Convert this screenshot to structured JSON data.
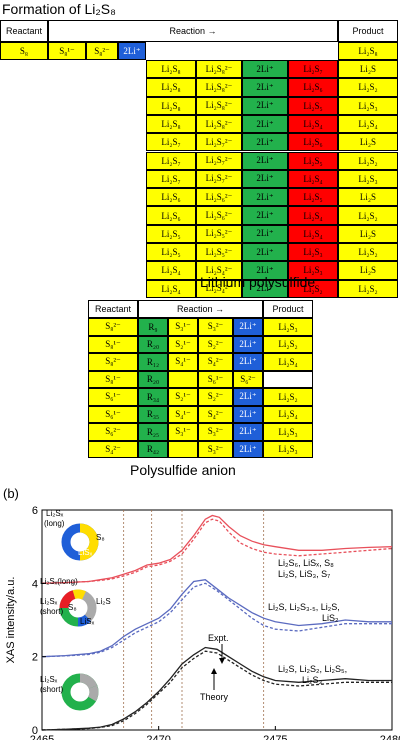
{
  "top_table": {
    "title": "Formation of Li₂S₈",
    "headers": {
      "reactant": "Reactant",
      "reaction": "Reaction →",
      "product": "Product"
    },
    "first_row": {
      "reactant": "S₈",
      "r1": "S₈¹⁻",
      "r2": "S₈²⁻",
      "r3": "2Li⁺",
      "product": "Li₂S₈"
    },
    "rows": [
      [
        "Li₂S₈",
        "Li₂S₈²⁻",
        "2Li⁺",
        "Li₂S₇",
        "Li₂S"
      ],
      [
        "Li₂S₈",
        "Li₂S₈²⁻",
        "2Li⁺",
        "Li₂S₆",
        "Li₂S₂"
      ],
      [
        "Li₂S₈",
        "Li₂S₈²⁻",
        "2Li⁺",
        "Li₂S₅",
        "Li₂S₃"
      ],
      [
        "Li₂S₈",
        "Li₂S₈²⁻",
        "2Li⁺",
        "Li₂S₄",
        "Li₂S₄"
      ],
      [
        "Li₂S₇",
        "Li₂S₇²⁻",
        "2Li⁺",
        "Li₂S₆",
        "Li₂S"
      ],
      [
        "Li₂S₇",
        "Li₂S₇²⁻",
        "2Li⁺",
        "Li₂S₅",
        "Li₂S₂"
      ],
      [
        "Li₂S₇",
        "Li₂S₇²⁻",
        "2Li⁺",
        "Li₂S₄",
        "Li₂S₃"
      ],
      [
        "Li₂S₆",
        "Li₂S₆²⁻",
        "2Li⁺",
        "Li₂S₅",
        "Li₂S"
      ],
      [
        "Li₂S₆",
        "Li₂S₆²⁻",
        "2Li⁺",
        "Li₂S₄",
        "Li₂S₂"
      ],
      [
        "Li₂S₅",
        "Li₂S₅²⁻",
        "2Li⁺",
        "Li₂S₄",
        "Li₂S"
      ],
      [
        "Li₂S₅",
        "Li₂S₅²⁻",
        "2Li⁺",
        "Li₂S₃",
        "Li₂S₂"
      ],
      [
        "Li₂S₄",
        "Li₂S₄²⁻",
        "2Li⁺",
        "Li₂S₃",
        "Li₂S"
      ],
      [
        "Li₂S₄",
        "Li₂S₄²⁻",
        "2Li⁺",
        "Li₂S₂",
        "Li₂S₂"
      ]
    ],
    "caption": "Lithium polysulfide"
  },
  "bottom_table": {
    "headers": {
      "reactant": "Reactant",
      "reaction": "Reaction →",
      "product": "Product"
    },
    "rows": [
      {
        "reactant": "S₈²⁻",
        "rx": "R₉",
        "a": "S₃¹⁻",
        "b": "S₃²⁻",
        "li": "2Li⁺",
        "product": "Li₂S₃"
      },
      {
        "reactant": "S₈¹⁻",
        "rx": "R₂₀",
        "a": "S₂¹⁻",
        "b": "S₂²⁻",
        "li": "2Li⁺",
        "product": "Li₂S₂"
      },
      {
        "reactant": "S₈²⁻",
        "rx": "R₁₂",
        "a": "S₄¹⁻",
        "b": "S₄²⁻",
        "li": "2Li⁺",
        "product": "Li₂S₄"
      },
      {
        "reactant": "S₈¹⁻",
        "rx": "R₂₀",
        "a": "",
        "b": "S₆¹⁻",
        "li": "S₆²⁻",
        "product": ""
      },
      {
        "reactant": "S₆¹⁻",
        "rx": "R₃₄",
        "a": "S₂¹⁻",
        "b": "S₂²⁻",
        "li": "2Li⁺",
        "product": "Li₂S₂"
      },
      {
        "reactant": "S₆¹⁻",
        "rx": "R₃₅",
        "a": "S₄¹⁻",
        "b": "S₄²⁻",
        "li": "2Li⁺",
        "product": "Li₂S₄"
      },
      {
        "reactant": "S₆²⁻",
        "rx": "R₂₅",
        "a": "S₃¹⁻",
        "b": "S₃²⁻",
        "li": "2Li⁺",
        "product": "Li₂S₃"
      },
      {
        "reactant": "S₄²⁻",
        "rx": "R₄₂",
        "a": "",
        "b": "S₃²⁻",
        "li": "2Li⁺",
        "product": "Li₂S₃"
      }
    ],
    "caption": "Polysulfide anion"
  },
  "panel": {
    "label": "(b)",
    "donut_labels": {
      "d1_top": "Li₂Sₓ",
      "d1_top2": "(long)",
      "d1_s8": "S₈",
      "d1_lisx": "LiSₓ",
      "d2_left": "Li₂Sₓ(long)",
      "d2_s8": "S₈",
      "d2_li2s": "Li₂S",
      "d2_left2": "Li₂Sₓ",
      "d2_short": "(short)",
      "d2_lisx": "LiSₓ",
      "d3_left": "Li₂Sₓ",
      "d3_short": "(short)"
    },
    "annotations": {
      "a1_line1": "Li₂S₆, LiSₓ, S₈",
      "a1_line2": "Li₂S, LiS₃, S₇",
      "a2_line1": "Li₂S, Li₂S₃.₅, Li₂S,",
      "a2_line2": "LiS₂",
      "a3_line1": "Li₂S, Li₂S₂, Li₂S₅,",
      "a3_line2": "Li₂S₃",
      "expt": "Expt.",
      "theory": "Theory"
    }
  },
  "chart_data": {
    "type": "line",
    "xlabel": "Energy/eV",
    "ylabel": "XAS intensity/a.u.",
    "xlim": [
      2465,
      2480
    ],
    "ylim": [
      0,
      6
    ],
    "xticks": [
      2465,
      2470,
      2475,
      2480
    ],
    "yticks": [
      0,
      2,
      4,
      6
    ],
    "vlines": [
      2468.5,
      2469.7,
      2471.0,
      2474.5
    ],
    "series": [
      {
        "color": "#e8505b",
        "style": "solid",
        "offset": 4,
        "x": [
          2465,
          2466,
          2467,
          2467.5,
          2468,
          2468.5,
          2469,
          2469.5,
          2470,
          2470.5,
          2471,
          2471.5,
          2472,
          2472.3,
          2472.6,
          2473,
          2473.5,
          2474,
          2474.5,
          2475,
          2476,
          2477,
          2478,
          2479,
          2480
        ],
        "y": [
          4.0,
          4.02,
          4.05,
          4.1,
          4.15,
          4.25,
          4.35,
          4.5,
          4.55,
          4.65,
          4.9,
          5.3,
          5.75,
          5.85,
          5.8,
          5.55,
          5.3,
          5.15,
          5.05,
          5.0,
          4.9,
          4.9,
          4.95,
          4.98,
          5.0
        ]
      },
      {
        "color": "#e8505b",
        "style": "dashed",
        "offset": 4,
        "x": [
          2465,
          2466,
          2467,
          2467.5,
          2468,
          2468.5,
          2469,
          2469.5,
          2470,
          2470.5,
          2471,
          2471.5,
          2472,
          2472.3,
          2472.6,
          2473,
          2473.5,
          2474,
          2474.5,
          2475,
          2476,
          2477,
          2478,
          2479,
          2480
        ],
        "y": [
          4.0,
          4.02,
          4.05,
          4.08,
          4.12,
          4.2,
          4.3,
          4.45,
          4.5,
          4.6,
          4.8,
          5.2,
          5.65,
          5.75,
          5.7,
          5.4,
          5.1,
          4.95,
          4.85,
          4.8,
          4.75,
          4.8,
          4.85,
          4.9,
          4.95
        ]
      },
      {
        "color": "#5b6bc0",
        "style": "solid",
        "offset": 2,
        "x": [
          2465,
          2466,
          2467,
          2467.5,
          2468,
          2468.5,
          2469,
          2469.5,
          2470,
          2470.5,
          2471,
          2471.5,
          2472,
          2472.5,
          2473,
          2473.5,
          2474,
          2474.5,
          2475,
          2476,
          2477,
          2478,
          2479,
          2480
        ],
        "y": [
          2.0,
          2.03,
          2.08,
          2.15,
          2.3,
          2.55,
          2.75,
          2.9,
          3.05,
          3.3,
          3.7,
          4.05,
          4.1,
          3.85,
          3.6,
          3.4,
          3.2,
          3.05,
          2.95,
          2.85,
          2.9,
          3.0,
          2.95,
          2.95
        ]
      },
      {
        "color": "#5b6bc0",
        "style": "dashed",
        "offset": 2,
        "x": [
          2465,
          2466,
          2467,
          2467.5,
          2468,
          2468.5,
          2469,
          2469.5,
          2470,
          2470.5,
          2471,
          2471.5,
          2472,
          2472.5,
          2473,
          2473.5,
          2474,
          2474.5,
          2475,
          2476,
          2477,
          2478,
          2479,
          2480
        ],
        "y": [
          2.0,
          2.02,
          2.06,
          2.12,
          2.25,
          2.45,
          2.65,
          2.8,
          2.95,
          3.2,
          3.55,
          3.9,
          4.0,
          3.8,
          3.55,
          3.3,
          3.05,
          2.85,
          2.75,
          2.7,
          2.8,
          2.9,
          2.9,
          2.9
        ]
      },
      {
        "color": "#222222",
        "style": "solid",
        "offset": 0,
        "x": [
          2465,
          2466,
          2467,
          2467.5,
          2468,
          2468.5,
          2469,
          2469.5,
          2470,
          2470.5,
          2471,
          2471.5,
          2472,
          2472.5,
          2473,
          2473.5,
          2474,
          2474.5,
          2475,
          2476,
          2477,
          2478,
          2479,
          2480
        ],
        "y": [
          0.0,
          0.02,
          0.05,
          0.08,
          0.15,
          0.3,
          0.5,
          0.75,
          1.05,
          1.4,
          1.8,
          2.05,
          2.25,
          2.2,
          2.0,
          1.8,
          1.6,
          1.45,
          1.35,
          1.3,
          1.35,
          1.4,
          1.35,
          1.35
        ]
      },
      {
        "color": "#222222",
        "style": "dashed",
        "offset": 0,
        "x": [
          2465,
          2466,
          2467,
          2467.5,
          2468,
          2468.5,
          2469,
          2469.5,
          2470,
          2470.5,
          2471,
          2471.5,
          2472,
          2472.5,
          2473,
          2473.5,
          2474,
          2474.5,
          2475,
          2476,
          2477,
          2478,
          2479,
          2480
        ],
        "y": [
          0.0,
          0.02,
          0.04,
          0.07,
          0.12,
          0.25,
          0.45,
          0.7,
          1.0,
          1.3,
          1.7,
          1.95,
          2.15,
          2.1,
          1.9,
          1.7,
          1.5,
          1.35,
          1.25,
          1.2,
          1.25,
          1.3,
          1.3,
          1.3
        ]
      }
    ]
  }
}
